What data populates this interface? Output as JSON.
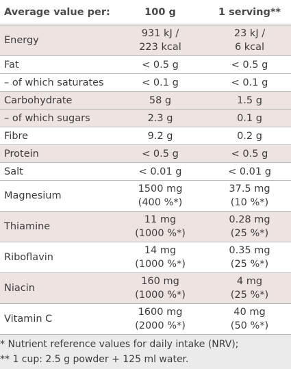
{
  "header": {
    "name": "Average value per:",
    "per100": "100 g",
    "serving": "1 serving**"
  },
  "rows": [
    {
      "name": "Energy",
      "per100": [
        "931 kJ /",
        "223 kcal"
      ],
      "serving": [
        "23 kJ /",
        "6 kcal"
      ],
      "shaded": true
    },
    {
      "name": "Fat",
      "per100": [
        "< 0.5 g"
      ],
      "serving": [
        "< 0.5 g"
      ],
      "shaded": false
    },
    {
      "name": "– of which saturates",
      "per100": [
        "< 0.1 g"
      ],
      "serving": [
        "< 0.1 g"
      ],
      "shaded": false
    },
    {
      "name": "Carbohydrate",
      "per100": [
        "58 g"
      ],
      "serving": [
        "1.5 g"
      ],
      "shaded": true
    },
    {
      "name": "– of which sugars",
      "per100": [
        "2.3 g"
      ],
      "serving": [
        "0.1 g"
      ],
      "shaded": true
    },
    {
      "name": "Fibre",
      "per100": [
        "9.2 g"
      ],
      "serving": [
        "0.2 g"
      ],
      "shaded": false
    },
    {
      "name": "Protein",
      "per100": [
        "< 0.5 g"
      ],
      "serving": [
        "< 0.5 g"
      ],
      "shaded": true
    },
    {
      "name": "Salt",
      "per100": [
        "< 0.01 g"
      ],
      "serving": [
        "< 0.01 g"
      ],
      "shaded": false
    },
    {
      "name": "Magnesium",
      "per100": [
        "1500 mg",
        "(400 %*)"
      ],
      "serving": [
        "37.5 mg",
        "(10 %*)"
      ],
      "shaded": false
    },
    {
      "name": "Thiamine",
      "per100": [
        "11 mg",
        "(1000 %*)"
      ],
      "serving": [
        "0.28 mg",
        "(25 %*)"
      ],
      "shaded": true
    },
    {
      "name": "Riboflavin",
      "per100": [
        "14 mg",
        "(1000 %*)"
      ],
      "serving": [
        "0.35 mg",
        "(25 %*)"
      ],
      "shaded": false
    },
    {
      "name": "Niacin",
      "per100": [
        "160 mg",
        "(1000 %*)"
      ],
      "serving": [
        "4 mg",
        "(25 %*)"
      ],
      "shaded": true
    },
    {
      "name": "Vitamin C",
      "per100": [
        "1600 mg",
        "(2000 %*)"
      ],
      "serving": [
        "40 mg",
        "(50 %*)"
      ],
      "shaded": false
    }
  ],
  "footnotes": [
    "* Nutrient reference values for daily intake (NRV);",
    "** 1 cup: 2.5 g powder + 125 ml water."
  ]
}
